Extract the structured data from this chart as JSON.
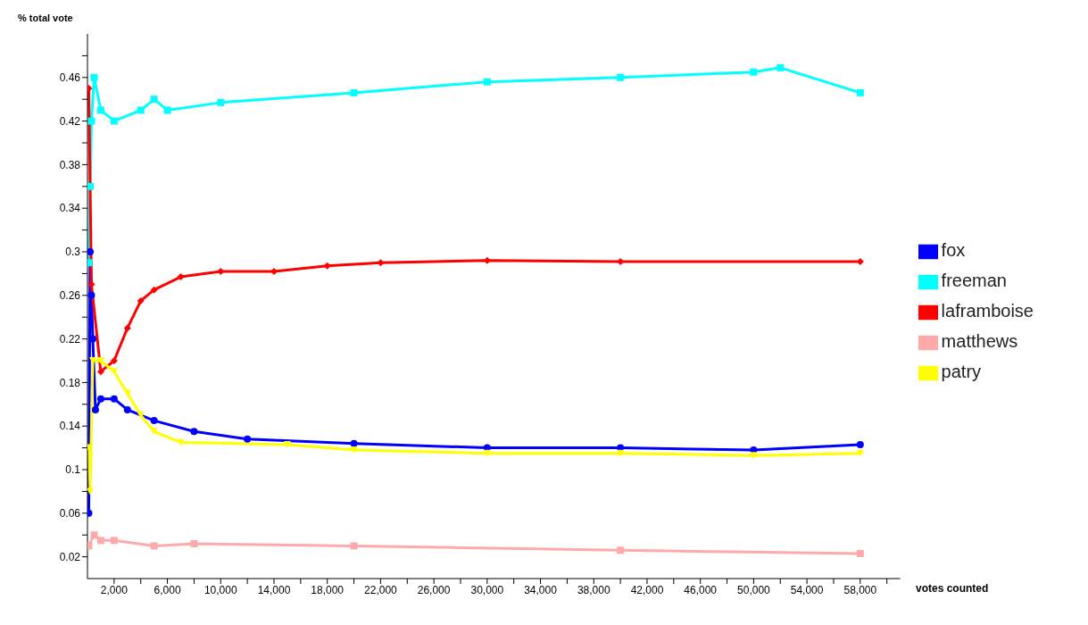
{
  "chart_data": {
    "type": "line",
    "xlabel": "votes counted",
    "ylabel": "% total vote",
    "xlim": [
      0,
      61000
    ],
    "ylim": [
      0,
      0.5
    ],
    "xticks": [
      {
        "value": 2000,
        "label": "2,000"
      },
      {
        "value": 4000,
        "label": null
      },
      {
        "value": 6000,
        "label": "6,000"
      },
      {
        "value": 8000,
        "label": null
      },
      {
        "value": 10000,
        "label": "10,000"
      },
      {
        "value": 12000,
        "label": null
      },
      {
        "value": 14000,
        "label": "14,000"
      },
      {
        "value": 16000,
        "label": null
      },
      {
        "value": 18000,
        "label": "18,000"
      },
      {
        "value": 20000,
        "label": null
      },
      {
        "value": 22000,
        "label": "22,000"
      },
      {
        "value": 24000,
        "label": null
      },
      {
        "value": 26000,
        "label": "26,000"
      },
      {
        "value": 28000,
        "label": null
      },
      {
        "value": 30000,
        "label": "30,000"
      },
      {
        "value": 32000,
        "label": null
      },
      {
        "value": 34000,
        "label": "34,000"
      },
      {
        "value": 36000,
        "label": null
      },
      {
        "value": 38000,
        "label": "38,000"
      },
      {
        "value": 40000,
        "label": null
      },
      {
        "value": 42000,
        "label": "42,000"
      },
      {
        "value": 44000,
        "label": null
      },
      {
        "value": 46000,
        "label": "46,000"
      },
      {
        "value": 48000,
        "label": null
      },
      {
        "value": 50000,
        "label": "50,000"
      },
      {
        "value": 52000,
        "label": null
      },
      {
        "value": 54000,
        "label": "54,000"
      },
      {
        "value": 56000,
        "label": null
      },
      {
        "value": 58000,
        "label": "58,000"
      },
      {
        "value": 60000,
        "label": null
      }
    ],
    "yticks": [
      0.02,
      {
        "value": 0.04,
        "label": null
      },
      0.06,
      {
        "value": 0.08,
        "label": null
      },
      0.1,
      {
        "value": 0.12,
        "label": null
      },
      0.14,
      {
        "value": 0.16,
        "label": null
      },
      0.18,
      {
        "value": 0.2,
        "label": null
      },
      0.22,
      {
        "value": 0.24,
        "label": null
      },
      0.26,
      {
        "value": 0.28,
        "label": null
      },
      0.3,
      {
        "value": 0.32,
        "label": null
      },
      0.34,
      {
        "value": 0.36,
        "label": null
      },
      0.38,
      {
        "value": 0.4,
        "label": null
      },
      0.42,
      {
        "value": 0.44,
        "label": null
      },
      0.46,
      {
        "value": 0.48,
        "label": null
      }
    ],
    "grid": false,
    "legend": "right",
    "series": [
      {
        "name": "fox",
        "color": "#0000ff",
        "marker": "circle",
        "x": [
          100,
          200,
          300,
          400,
          600,
          1000,
          2000,
          3000,
          5000,
          8000,
          12000,
          20000,
          30000,
          40000,
          50000,
          58000
        ],
        "values": [
          0.06,
          0.3,
          0.26,
          0.22,
          0.155,
          0.165,
          0.165,
          0.155,
          0.145,
          0.135,
          0.128,
          0.124,
          0.12,
          0.12,
          0.118,
          0.123
        ]
      },
      {
        "name": "freeman",
        "color": "#00ffff",
        "marker": "square",
        "x": [
          100,
          200,
          300,
          500,
          1000,
          2000,
          4000,
          5000,
          6000,
          10000,
          20000,
          30000,
          40000,
          50000,
          52000,
          58000
        ],
        "values": [
          0.29,
          0.36,
          0.42,
          0.46,
          0.43,
          0.42,
          0.43,
          0.44,
          0.43,
          0.437,
          0.446,
          0.456,
          0.46,
          0.465,
          0.469,
          0.446
        ]
      },
      {
        "name": "laframboise",
        "color": "#ff0000",
        "marker": "diamond",
        "x": [
          100,
          300,
          1000,
          2000,
          3000,
          4000,
          5000,
          7000,
          10000,
          14000,
          18000,
          22000,
          30000,
          40000,
          58000
        ],
        "values": [
          0.45,
          0.27,
          0.19,
          0.2,
          0.23,
          0.255,
          0.265,
          0.277,
          0.282,
          0.282,
          0.287,
          0.29,
          0.292,
          0.291,
          0.291
        ]
      },
      {
        "name": "matthews",
        "color": "#ffaaaa",
        "marker": "square",
        "x": [
          100,
          500,
          1000,
          2000,
          5000,
          8000,
          20000,
          40000,
          58000
        ],
        "values": [
          0.03,
          0.04,
          0.035,
          0.035,
          0.03,
          0.032,
          0.03,
          0.026,
          0.023
        ]
      },
      {
        "name": "patry",
        "color": "#ffff00",
        "marker": "triangle",
        "x": [
          100,
          200,
          400,
          1000,
          2000,
          3000,
          4000,
          5000,
          7000,
          15000,
          20000,
          30000,
          40000,
          50000,
          58000
        ],
        "values": [
          0.12,
          0.08,
          0.2,
          0.2,
          0.19,
          0.17,
          0.15,
          0.135,
          0.125,
          0.123,
          0.118,
          0.115,
          0.115,
          0.113,
          0.115
        ]
      }
    ]
  }
}
